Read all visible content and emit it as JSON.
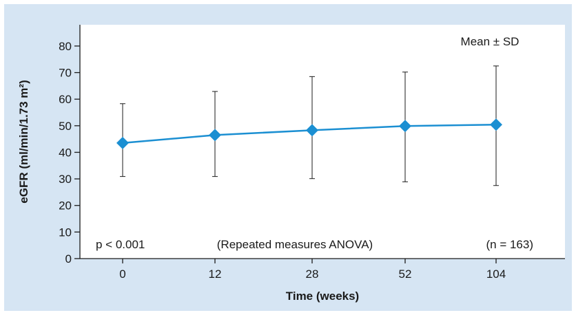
{
  "chart_data": {
    "type": "line",
    "x_categories": [
      "0",
      "12",
      "28",
      "52",
      "104"
    ],
    "y_ticks": [
      0,
      10,
      20,
      30,
      40,
      50,
      60,
      70,
      80
    ],
    "ylim": [
      0,
      88
    ],
    "xlabel": "Time (weeks)",
    "ylabel": "eGFR (ml/min/1.73 m²)",
    "series": [
      {
        "values": [
          43.5,
          46.5,
          48.3,
          49.9,
          50.4
        ],
        "error_upper": [
          58.3,
          62.9,
          68.5,
          70.2,
          72.5
        ],
        "error_lower": [
          30.9,
          30.9,
          30.1,
          28.9,
          27.5
        ],
        "color": "#1b8fd2"
      }
    ],
    "annotations": {
      "stat_label": "Mean ± SD",
      "p_value": "p < 0.001",
      "test": "(Repeated measures ANOVA)",
      "n": "(n = 163)"
    },
    "grid": false,
    "colors": {
      "background": "#d6e5f3",
      "plot_area": "#ffffff",
      "axis": "#1a1a1a"
    }
  }
}
